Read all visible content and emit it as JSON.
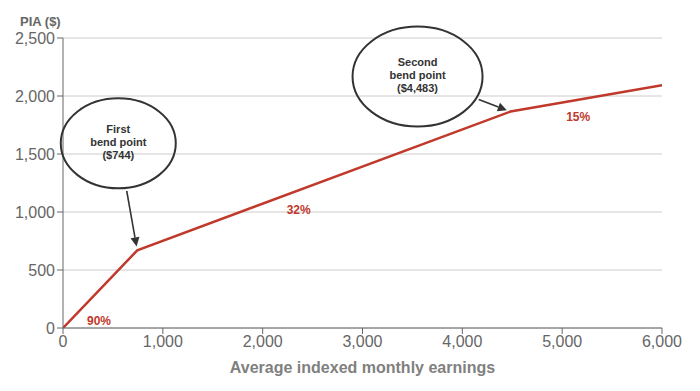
{
  "chart_data": {
    "type": "line",
    "xlabel": "Average indexed monthly earnings",
    "ylabel": "PIA ($)",
    "x": [
      0,
      744,
      4483,
      6000
    ],
    "values": [
      0,
      669.6,
      1866.08,
      2093.63
    ],
    "color": "#C0392B",
    "xlim": [
      0,
      6000
    ],
    "xticks": [
      0,
      {
        "value": 1000,
        "label": "1,000"
      },
      {
        "value": 2000,
        "label": "2,000"
      },
      {
        "value": 3000,
        "label": "3,000"
      },
      {
        "value": 4000,
        "label": "4,000"
      },
      {
        "value": 5000,
        "label": "5,000"
      },
      {
        "value": 6000,
        "label": "6,000"
      }
    ],
    "ylim": [
      0,
      2500
    ],
    "yticks": [
      0,
      500,
      {
        "value": 1000,
        "label": "1,000"
      },
      {
        "value": 1500,
        "label": "1,500"
      },
      {
        "value": 2000,
        "label": "2,000"
      },
      {
        "value": 2500,
        "label": "2,500"
      }
    ],
    "grid": "y",
    "annotations": [
      {
        "text": "90%",
        "x": 200,
        "y": 180
      },
      {
        "text": "32%",
        "x": 2200,
        "y": 1135.52
      },
      {
        "text": "15%",
        "x": 5000,
        "y": 1943.63
      }
    ],
    "callouts": [
      {
        "text": "First\nbend point\n($744)",
        "x": 744,
        "y": 669.6
      },
      {
        "text": "Second\nbend point\n($4,483)",
        "x": 4483,
        "y": 1866.08
      }
    ]
  }
}
